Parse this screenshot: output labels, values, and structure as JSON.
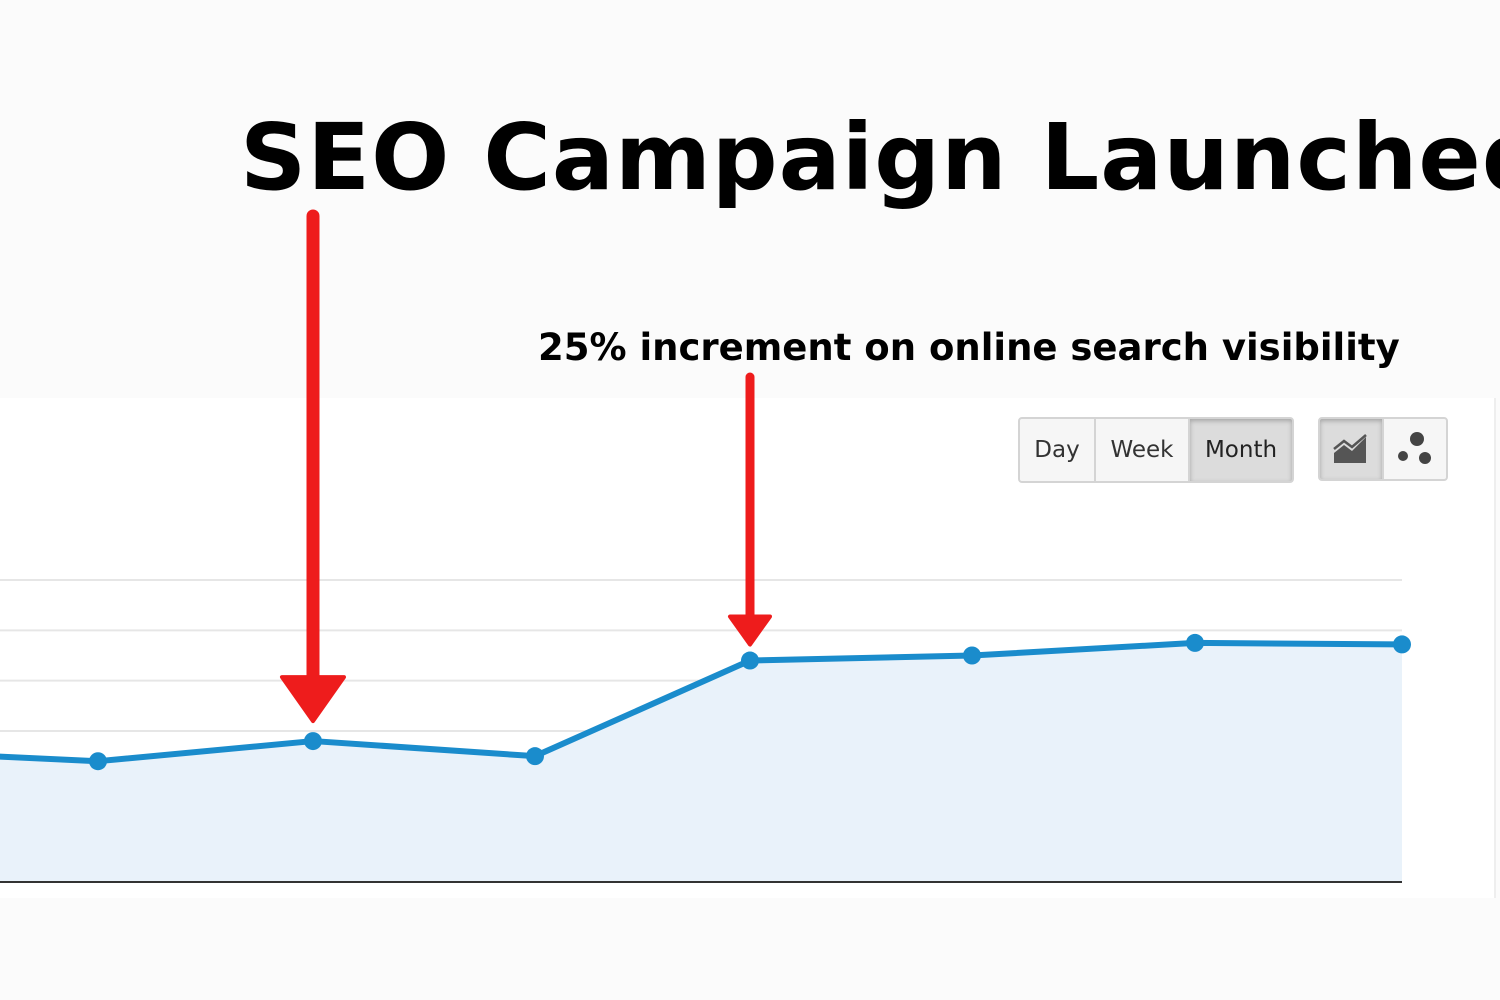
{
  "header": {
    "title": "SEO Campaign Launched",
    "annotation": "25% increment on online search visibility"
  },
  "controls": {
    "period_options": [
      "Day",
      "Week",
      "Month"
    ],
    "selected_period": "Month",
    "view_options": [
      "line-chart-icon",
      "motion-chart-icon"
    ],
    "selected_view": "line-chart-icon"
  },
  "colors": {
    "line": "#1a8ccc",
    "area": "#e9f2fa",
    "arrow": "#ee1c1c",
    "grid": "#e6e6e6",
    "axis": "#333333"
  },
  "chart_data": {
    "type": "area",
    "x": [
      0,
      1,
      2,
      3,
      4,
      5,
      6,
      7
    ],
    "values": [
      2.5,
      2.4,
      2.8,
      2.5,
      4.4,
      4.5,
      4.75,
      4.72
    ],
    "ylim": [
      0,
      6
    ],
    "grid": true,
    "annotations": [
      {
        "label": "SEO Campaign Launched",
        "x": 2
      },
      {
        "label": "25% increment on online search visibility",
        "x": 4
      }
    ]
  }
}
